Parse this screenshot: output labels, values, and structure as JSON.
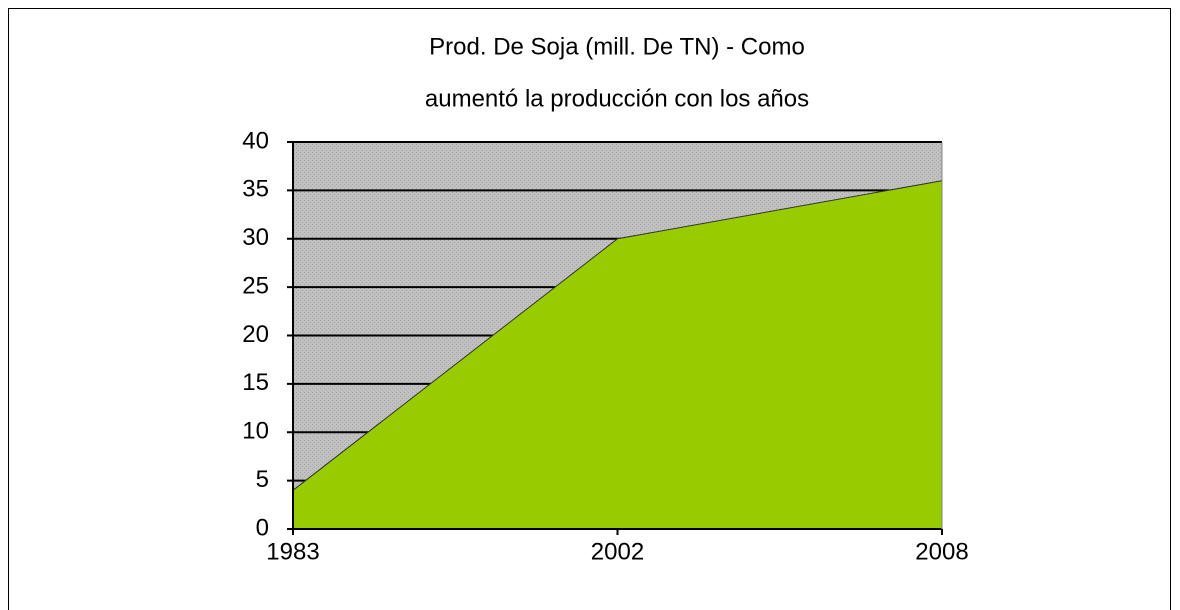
{
  "chart_data": {
    "type": "area",
    "title": [
      "Prod. De Soja (mill. De TN) - Como",
      "aumentó la producción con los años"
    ],
    "categories": [
      "1983",
      "2002",
      "2008"
    ],
    "values": [
      4,
      30,
      36
    ],
    "color": "#99cc00",
    "ylim": [
      0,
      40
    ],
    "yticks": [
      0,
      5,
      10,
      15,
      20,
      25,
      30,
      35,
      40
    ],
    "grid": true
  }
}
